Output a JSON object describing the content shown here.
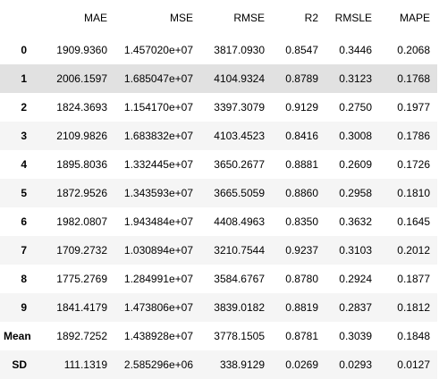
{
  "table": {
    "index_header": "",
    "columns": [
      "MAE",
      "MSE",
      "RMSE",
      "R2",
      "RMSLE",
      "MAPE"
    ],
    "rows": [
      {
        "index": "0",
        "cells": [
          "1909.9360",
          "1.457020e+07",
          "3817.0930",
          "0.8547",
          "0.3446",
          "0.2068"
        ]
      },
      {
        "index": "1",
        "cells": [
          "2006.1597",
          "1.685047e+07",
          "4104.9324",
          "0.8789",
          "0.3123",
          "0.1768"
        ]
      },
      {
        "index": "2",
        "cells": [
          "1824.3693",
          "1.154170e+07",
          "3397.3079",
          "0.9129",
          "0.2750",
          "0.1977"
        ]
      },
      {
        "index": "3",
        "cells": [
          "2109.9826",
          "1.683832e+07",
          "4103.4523",
          "0.8416",
          "0.3008",
          "0.1786"
        ]
      },
      {
        "index": "4",
        "cells": [
          "1895.8036",
          "1.332445e+07",
          "3650.2677",
          "0.8881",
          "0.2609",
          "0.1726"
        ]
      },
      {
        "index": "5",
        "cells": [
          "1872.9526",
          "1.343593e+07",
          "3665.5059",
          "0.8860",
          "0.2958",
          "0.1810"
        ]
      },
      {
        "index": "6",
        "cells": [
          "1982.0807",
          "1.943484e+07",
          "4408.4963",
          "0.8350",
          "0.3632",
          "0.1645"
        ]
      },
      {
        "index": "7",
        "cells": [
          "1709.2732",
          "1.030894e+07",
          "3210.7544",
          "0.9237",
          "0.3103",
          "0.2012"
        ]
      },
      {
        "index": "8",
        "cells": [
          "1775.2769",
          "1.284991e+07",
          "3584.6767",
          "0.8780",
          "0.2924",
          "0.1877"
        ]
      },
      {
        "index": "9",
        "cells": [
          "1841.4179",
          "1.473806e+07",
          "3839.0182",
          "0.8819",
          "0.2837",
          "0.1812"
        ]
      },
      {
        "index": "Mean",
        "cells": [
          "1892.7252",
          "1.438928e+07",
          "3778.1505",
          "0.8781",
          "0.3039",
          "0.1848"
        ]
      },
      {
        "index": "SD",
        "cells": [
          "111.1319",
          "2.585296e+06",
          "338.9129",
          "0.0269",
          "0.0293",
          "0.0127"
        ]
      }
    ],
    "hovered_row": 1,
    "colors": {
      "stripe": "#f5f5f5",
      "hover": "#e1e1e1",
      "text": "#000000"
    }
  }
}
